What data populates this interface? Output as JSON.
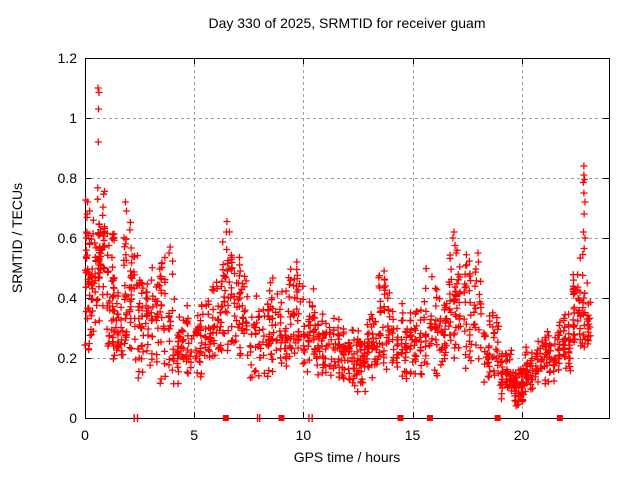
{
  "chart_data": {
    "type": "scatter",
    "title": "Day 330 of 2025, SRMTID for receiver guam",
    "xlabel": "GPS time / hours",
    "ylabel": "SRMTID / TECUs",
    "xlim": [
      0,
      24
    ],
    "ylim": [
      0,
      1.2
    ],
    "grid": true,
    "legend": "none",
    "marker": "plus",
    "marker_color": "#ff0000",
    "grid_color": "#9c9c9c",
    "frame_color": "#000000",
    "background_color": "#ffffff",
    "x_ticks": [
      {
        "v": 0,
        "label": "0"
      },
      {
        "v": 5,
        "label": "5"
      },
      {
        "v": 10,
        "label": "10"
      },
      {
        "v": 15,
        "label": "15"
      },
      {
        "v": 20,
        "label": "20"
      }
    ],
    "y_ticks": [
      {
        "v": 0,
        "label": "0"
      },
      {
        "v": 0.2,
        "label": "0.2"
      },
      {
        "v": 0.4,
        "label": "0.4"
      },
      {
        "v": 0.6,
        "label": "0.6"
      },
      {
        "v": 0.8,
        "label": "0.8"
      },
      {
        "v": 1,
        "label": "1"
      },
      {
        "v": 1.2,
        "label": "1.2"
      }
    ],
    "density_bands": [
      [
        0.0,
        0.25,
        0.2,
        0.78,
        38
      ],
      [
        0.25,
        0.55,
        0.25,
        0.68,
        30
      ],
      [
        0.55,
        0.95,
        0.32,
        0.78,
        55
      ],
      [
        0.95,
        1.4,
        0.18,
        0.7,
        48
      ],
      [
        1.4,
        1.75,
        0.15,
        0.48,
        28
      ],
      [
        1.75,
        2.2,
        0.18,
        0.72,
        45
      ],
      [
        2.2,
        2.7,
        0.12,
        0.6,
        40
      ],
      [
        2.7,
        3.4,
        0.15,
        0.55,
        46
      ],
      [
        3.4,
        4.15,
        0.1,
        0.57,
        50
      ],
      [
        4.15,
        5.0,
        0.1,
        0.38,
        52
      ],
      [
        5.0,
        5.8,
        0.13,
        0.42,
        50
      ],
      [
        5.8,
        6.3,
        0.15,
        0.5,
        35
      ],
      [
        6.3,
        6.8,
        0.2,
        0.64,
        40
      ],
      [
        6.8,
        7.5,
        0.18,
        0.55,
        45
      ],
      [
        7.5,
        8.5,
        0.12,
        0.46,
        56
      ],
      [
        8.5,
        9.3,
        0.14,
        0.48,
        50
      ],
      [
        9.3,
        9.9,
        0.18,
        0.53,
        40
      ],
      [
        9.9,
        10.6,
        0.15,
        0.45,
        45
      ],
      [
        10.6,
        11.5,
        0.12,
        0.38,
        55
      ],
      [
        11.5,
        12.2,
        0.1,
        0.35,
        50
      ],
      [
        12.2,
        12.9,
        0.08,
        0.3,
        50
      ],
      [
        12.9,
        13.4,
        0.12,
        0.38,
        38
      ],
      [
        13.4,
        14.0,
        0.14,
        0.5,
        40
      ],
      [
        14.0,
        14.8,
        0.1,
        0.4,
        46
      ],
      [
        14.8,
        15.5,
        0.12,
        0.42,
        40
      ],
      [
        15.5,
        16.2,
        0.14,
        0.52,
        40
      ],
      [
        16.2,
        16.6,
        0.15,
        0.45,
        30
      ],
      [
        16.6,
        17.3,
        0.2,
        0.62,
        50
      ],
      [
        17.3,
        18.2,
        0.15,
        0.55,
        50
      ],
      [
        18.2,
        19.0,
        0.1,
        0.4,
        45
      ],
      [
        19.0,
        19.6,
        0.06,
        0.25,
        50
      ],
      [
        19.6,
        20.1,
        0.04,
        0.18,
        55
      ],
      [
        20.1,
        20.8,
        0.08,
        0.26,
        50
      ],
      [
        20.8,
        21.6,
        0.1,
        0.3,
        52
      ],
      [
        21.6,
        22.3,
        0.13,
        0.36,
        52
      ],
      [
        22.3,
        22.95,
        0.17,
        0.55,
        55
      ],
      [
        22.95,
        23.15,
        0.22,
        0.4,
        15
      ]
    ],
    "notable_points": [
      [
        0.6,
        1.1
      ],
      [
        0.64,
        1.085
      ],
      [
        0.62,
        1.03
      ],
      [
        0.61,
        0.92
      ],
      [
        1.85,
        0.72
      ],
      [
        1.9,
        0.69
      ],
      [
        3.9,
        0.57
      ],
      [
        3.85,
        0.55
      ],
      [
        6.5,
        0.655
      ],
      [
        6.48,
        0.62
      ],
      [
        9.7,
        0.52
      ],
      [
        9.7,
        0.495
      ],
      [
        9.72,
        0.465
      ],
      [
        9.68,
        0.44
      ],
      [
        9.71,
        0.42
      ],
      [
        13.7,
        0.49
      ],
      [
        13.72,
        0.46
      ],
      [
        16.9,
        0.62
      ],
      [
        16.85,
        0.6
      ],
      [
        16.95,
        0.575
      ],
      [
        17.0,
        0.55
      ],
      [
        18.0,
        0.55
      ],
      [
        18.02,
        0.52
      ],
      [
        22.85,
        0.84
      ],
      [
        22.85,
        0.81
      ],
      [
        22.88,
        0.795
      ],
      [
        22.82,
        0.785
      ],
      [
        22.85,
        0.75
      ],
      [
        22.9,
        0.72
      ],
      [
        22.86,
        0.68
      ],
      [
        22.83,
        0.62
      ],
      [
        22.9,
        0.6
      ],
      [
        22.86,
        0.565
      ],
      [
        22.8,
        0.545
      ],
      [
        23.0,
        0.45
      ],
      [
        23.05,
        0.38
      ]
    ],
    "zero_line_markers": [
      {
        "x": 2.25,
        "style": "tick"
      },
      {
        "x": 2.4,
        "style": "tick"
      },
      {
        "x": 6.45,
        "style": "square"
      },
      {
        "x": 7.9,
        "style": "tick"
      },
      {
        "x": 8.0,
        "style": "tick"
      },
      {
        "x": 9.0,
        "style": "square"
      },
      {
        "x": 10.25,
        "style": "tick"
      },
      {
        "x": 10.4,
        "style": "tick"
      },
      {
        "x": 14.45,
        "style": "square"
      },
      {
        "x": 15.8,
        "style": "square"
      },
      {
        "x": 18.9,
        "style": "square"
      },
      {
        "x": 21.75,
        "style": "square"
      }
    ]
  }
}
